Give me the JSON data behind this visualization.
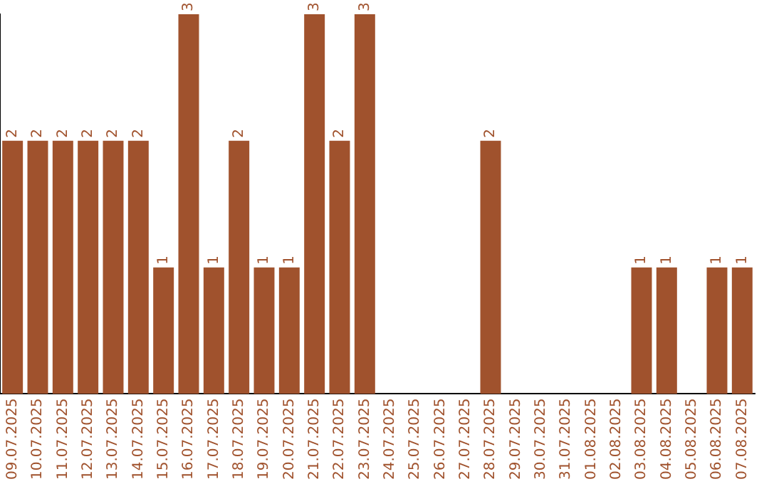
{
  "chart_data": {
    "type": "bar",
    "categories": [
      "09.07.2025",
      "10.07.2025",
      "11.07.2025",
      "12.07.2025",
      "13.07.2025",
      "14.07.2025",
      "15.07.2025",
      "16.07.2025",
      "17.07.2025",
      "18.07.2025",
      "19.07.2025",
      "20.07.2025",
      "21.07.2025",
      "22.07.2025",
      "23.07.2025",
      "24.07.2025",
      "25.07.2025",
      "26.07.2025",
      "27.07.2025",
      "28.07.2025",
      "29.07.2025",
      "30.07.2025",
      "31.07.2025",
      "01.08.2025",
      "02.08.2025",
      "03.08.2025",
      "04.08.2025",
      "05.08.2025",
      "06.08.2025",
      "07.08.2025"
    ],
    "values": [
      2,
      2,
      2,
      2,
      2,
      2,
      1,
      3,
      1,
      2,
      1,
      1,
      3,
      2,
      3,
      0,
      0,
      0,
      0,
      2,
      0,
      0,
      0,
      0,
      0,
      1,
      1,
      0,
      1,
      1
    ],
    "value_labels": [
      "2",
      "2",
      "2",
      "2",
      "2",
      "2",
      "1",
      "3",
      "1",
      "2",
      "1",
      "1",
      "3",
      "2",
      "3",
      null,
      null,
      null,
      null,
      "2",
      null,
      null,
      null,
      null,
      null,
      "1",
      "1",
      null,
      "1",
      "1"
    ],
    "color": "#a0522d",
    "ylim": [
      0,
      3
    ],
    "tick_labels": "x",
    "grid": false,
    "legend": false
  }
}
